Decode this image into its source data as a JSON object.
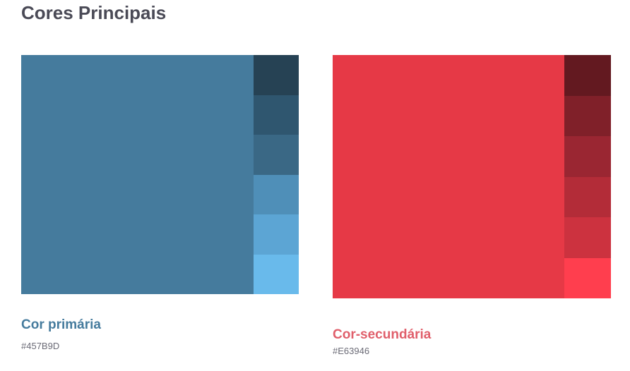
{
  "header": {
    "title": "Cores Principais"
  },
  "palettes": [
    {
      "name": "Cor primária",
      "hex": "#457B9D",
      "main_color": "#457B9D",
      "label_color": "#457B9D",
      "shades": [
        "#264254",
        "#2F566F",
        "#3A6885",
        "#4F8FB8",
        "#5CA5D4",
        "#69BAEB"
      ]
    },
    {
      "name": "Cor-secundária",
      "hex": "#E63946",
      "main_color": "#E63946",
      "label_color": "#E05F6B",
      "shades": [
        "#631920",
        "#802029",
        "#9A2632",
        "#B32C38",
        "#CC323F",
        "#FF3E4E"
      ]
    }
  ]
}
